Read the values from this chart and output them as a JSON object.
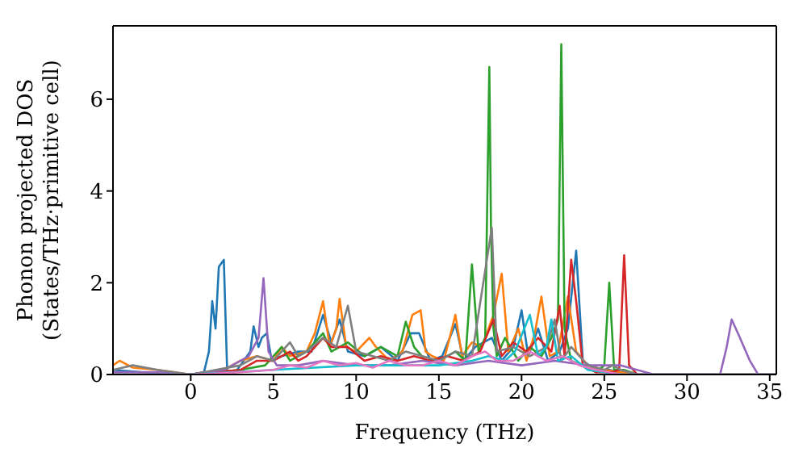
{
  "chart_data": {
    "type": "line",
    "xlabel": "Frequency (THz)",
    "ylabel": "Phonon projected DOS\n(States/THz·primitive cell)",
    "xlim": [
      -4.7,
      35.4
    ],
    "ylim": [
      0,
      7.6
    ],
    "xticks": [
      0,
      5,
      10,
      15,
      20,
      25,
      30,
      35
    ],
    "yticks": [
      0,
      2,
      4,
      6
    ],
    "marker": "none",
    "line_style": "solid",
    "series": [
      {
        "color": "#1f77b4",
        "x": [
          -4.7,
          -3,
          0,
          0.8,
          1.1,
          1.3,
          1.5,
          1.7,
          2.0,
          2.2,
          2.4,
          2.7,
          3.2,
          3.6,
          3.8,
          4.1,
          4.3,
          4.6,
          4.9,
          5.5,
          6.5,
          7.3,
          8.0,
          8.5,
          9.0,
          9.5,
          10.5,
          11.5,
          12.5,
          13.3,
          13.8,
          14.5,
          15.2,
          16.0,
          16.5,
          17.2,
          18.2,
          18.8,
          19.5,
          20.0,
          20.4,
          21.0,
          21.6,
          22.3,
          22.8,
          23.3,
          23.7,
          24.5,
          25.3,
          26,
          27
        ],
        "values": [
          0.1,
          0.05,
          0,
          0.05,
          0.5,
          1.6,
          1.0,
          2.35,
          2.5,
          0.1,
          0,
          0.05,
          0.3,
          0.5,
          1.05,
          0.6,
          0.8,
          0.9,
          0.3,
          0.4,
          0.5,
          0.5,
          1.3,
          0.7,
          1.2,
          0.5,
          0.4,
          0.6,
          0.3,
          0.9,
          0.9,
          0.3,
          0.4,
          1.1,
          0.3,
          0.6,
          0.8,
          0.3,
          0.6,
          1.4,
          0.4,
          1.0,
          0.3,
          0.5,
          1.0,
          2.7,
          0.3,
          0.1,
          0.1,
          0.05,
          0
        ]
      },
      {
        "color": "#ff7f0e",
        "x": [
          -4.7,
          -4.3,
          -3.5,
          -2,
          0,
          2,
          3,
          4,
          5,
          5.5,
          6,
          7,
          7.5,
          8.0,
          8.4,
          8.8,
          9.0,
          9.4,
          10,
          10.8,
          11.2,
          12,
          12.8,
          13.4,
          13.9,
          14.2,
          14.6,
          15.3,
          16.0,
          16.4,
          17.0,
          17.6,
          18.3,
          18.8,
          19.2,
          19.8,
          20.3,
          20.8,
          21.2,
          21.7,
          22.2,
          22.8,
          23.3,
          24,
          25,
          26,
          27,
          35.4
        ],
        "values": [
          0.2,
          0.3,
          0.15,
          0.1,
          0,
          0.1,
          0.3,
          0.4,
          0.3,
          0.6,
          0.4,
          0.5,
          0.9,
          1.6,
          0.6,
          1.0,
          1.65,
          0.6,
          0.5,
          0.8,
          0.6,
          0.3,
          0.5,
          1.3,
          1.4,
          0.5,
          0.4,
          0.3,
          1.3,
          0.4,
          0.7,
          0.6,
          1.3,
          2.2,
          0.5,
          1.0,
          0.3,
          0.9,
          1.7,
          0.4,
          0.5,
          1.7,
          0.5,
          0.2,
          0.1,
          0.05,
          0,
          0
        ]
      },
      {
        "color": "#2ca02c",
        "x": [
          -4.7,
          0,
          3,
          4.5,
          5.5,
          6,
          7,
          8,
          8.5,
          9.5,
          10.5,
          11.5,
          12.5,
          13.0,
          13.5,
          14.2,
          15,
          16,
          16.6,
          17.0,
          17.4,
          17.8,
          18.05,
          18.15,
          18.3,
          18.5,
          19,
          19.8,
          20.5,
          21.2,
          21.8,
          22.2,
          22.4,
          22.6,
          23.0,
          23.6,
          24.5,
          25.0,
          25.3,
          25.6,
          26.2,
          27,
          35.4
        ],
        "values": [
          0,
          0,
          0.1,
          0.2,
          0.6,
          0.3,
          0.5,
          0.9,
          0.5,
          0.7,
          0.4,
          0.6,
          0.4,
          1.15,
          0.6,
          0.3,
          0.3,
          0.5,
          0.3,
          2.4,
          0.5,
          0.8,
          6.7,
          3.2,
          1.0,
          0.4,
          0.8,
          0.3,
          0.6,
          0.4,
          0.8,
          1.2,
          7.2,
          1.0,
          0.3,
          0.2,
          0.05,
          0.2,
          2.0,
          0.1,
          0.1,
          0,
          0
        ]
      },
      {
        "color": "#d62728",
        "x": [
          -4.7,
          0,
          3,
          4,
          5,
          6,
          6.5,
          7,
          8.0,
          8.5,
          9.5,
          10.5,
          11.5,
          12.5,
          13.5,
          14.5,
          15.5,
          16.5,
          17.5,
          18.3,
          18.8,
          19.5,
          20.3,
          21.0,
          21.8,
          22.3,
          22.6,
          23.0,
          23.3,
          23.7,
          24.5,
          25.5,
          25.9,
          26.2,
          26.5,
          27,
          35.4
        ],
        "values": [
          0,
          0,
          0.1,
          0.3,
          0.3,
          0.5,
          0.3,
          0.4,
          0.8,
          0.6,
          0.6,
          0.3,
          0.4,
          0.3,
          0.4,
          0.3,
          0.4,
          0.3,
          0.5,
          1.2,
          0.4,
          0.7,
          0.5,
          0.8,
          0.5,
          1.5,
          0.4,
          2.5,
          1.6,
          0.2,
          0.05,
          0.05,
          0.1,
          2.6,
          0.2,
          0,
          0
        ]
      },
      {
        "color": "#9467bd",
        "x": [
          -4.7,
          -2,
          0,
          2,
          3.5,
          4.1,
          4.4,
          4.7,
          5.2,
          6.5,
          8,
          10,
          12,
          14,
          16,
          18,
          20,
          22,
          24,
          26,
          28,
          32,
          32.4,
          32.7,
          33.2,
          33.8,
          34.3,
          35.4
        ],
        "values": [
          0.05,
          0.05,
          0,
          0.1,
          0.4,
          0.8,
          2.1,
          0.5,
          0.2,
          0.2,
          0.3,
          0.2,
          0.2,
          0.3,
          0.2,
          0.3,
          0.2,
          0.3,
          0.2,
          0.2,
          0,
          0,
          0.6,
          1.2,
          0.8,
          0.3,
          0,
          0
        ]
      },
      {
        "color": "#7f7f7f",
        "x": [
          -4.7,
          -3.5,
          -2,
          0,
          3,
          4,
          5,
          6,
          6.5,
          7,
          8,
          8.8,
          9.5,
          10,
          11,
          12,
          13,
          14,
          15,
          16,
          17,
          18.2,
          18.5,
          19.5,
          20.5,
          21.5,
          22.0,
          22.4,
          23,
          24,
          25,
          25.5,
          26,
          27,
          35.4
        ],
        "values": [
          0.1,
          0.2,
          0.1,
          0,
          0.2,
          0.4,
          0.3,
          0.7,
          0.4,
          0.5,
          0.8,
          0.6,
          1.5,
          0.5,
          0.4,
          0.3,
          0.5,
          0.4,
          0.3,
          0.5,
          0.4,
          3.2,
          0.5,
          0.6,
          0.4,
          0.6,
          1.2,
          0.3,
          0.6,
          0.2,
          0.1,
          0.2,
          0.1,
          0,
          0
        ]
      },
      {
        "color": "#17becf",
        "x": [
          -4.7,
          0,
          5,
          10,
          15,
          17,
          18,
          19,
          19.6,
          20.5,
          21.0,
          21.5,
          21.8,
          22.2,
          23,
          24,
          26,
          35.4
        ],
        "values": [
          0,
          0,
          0.1,
          0.2,
          0.2,
          0.3,
          0.4,
          0.3,
          0.5,
          1.3,
          0.4,
          0.6,
          1.2,
          0.3,
          0.4,
          0.1,
          0,
          0
        ]
      },
      {
        "color": "#e377c2",
        "x": [
          -4.7,
          0,
          3,
          5,
          6,
          7,
          8,
          9,
          10,
          11,
          12,
          13,
          14,
          15,
          16,
          17,
          17.8,
          18.5,
          19.5,
          20.5,
          21.5,
          22.5,
          23.5,
          24.5,
          26,
          35.4
        ],
        "values": [
          0,
          0,
          0.05,
          0.1,
          0.2,
          0.15,
          0.3,
          0.2,
          0.25,
          0.15,
          0.3,
          0.2,
          0.2,
          0.3,
          0.2,
          0.4,
          0.5,
          0.3,
          0.3,
          0.5,
          0.3,
          0.4,
          0.2,
          0.1,
          0,
          0
        ]
      }
    ]
  }
}
